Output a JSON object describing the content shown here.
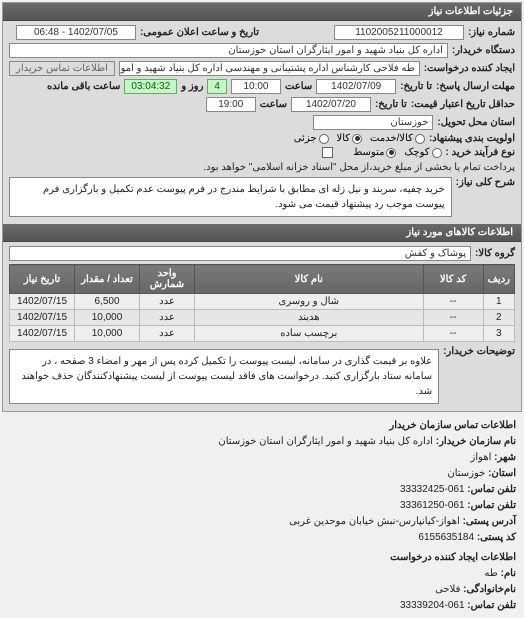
{
  "colors": {
    "header_bg": "#666666",
    "header_text": "#ffffff",
    "panel_bg": "#dcdcdc",
    "input_bg": "#ffffff",
    "border": "#888888",
    "time_bg": "#c8f5c8",
    "time_text": "#006600"
  },
  "header": {
    "title": "جزئیات اطلاعات نیاز"
  },
  "top": {
    "label_req_no": "شماره نیاز:",
    "req_no": "1102005211000012",
    "label_announce": "تاریخ و ساعت اعلان عمومی:",
    "announce_date": "1402/07/05 - 06:48",
    "label_buyer": "دستگاه خریدار:",
    "buyer": "اداره کل بنیاد شهید و امور ایثارگران استان خوزستان",
    "label_creator": "ایجاد کننده درخواست:",
    "creator": "طه فلاحی کارشناس اداره پشتیبانی و مهندسی اداره کل بنیاد شهید و امور ایثـ",
    "contact_link": "اطلاعات تماس خریدار",
    "label_deadline": "مهلت ارسال پاسخ:",
    "label_to_date": "تا تاریخ:",
    "deadline_date": "1402/07/09",
    "label_time": "ساعت",
    "deadline_time": "10:00",
    "remain_days": "4",
    "label_days_and": "روز و",
    "remain_time": "03:04:32",
    "label_remaining": "ساعت باقی مانده",
    "label_price_validity": "حداقل تاریخ اعتبار قیمت:",
    "label_to_date2": "تا تاریخ:",
    "validity_date": "1402/07/20",
    "label_time2": "ساعت",
    "validity_time": "19:00",
    "label_province": "استان محل تحویل:",
    "province": "خوزستان",
    "label_pkg_priority": "اولویت بندی پیشنهاد:",
    "pkg_opt_item": "کالا/خدمت",
    "pkg_opt_all": "کالا",
    "pkg_opt_partial": "جزئی",
    "label_need_type": "نوع فرآیند خرید :",
    "need_opt_low": "کوچک",
    "need_opt_mid": "متوسط",
    "label_payment": "پرداخت تمام یا بخشی از مبلغ خرید،از محل \"اسناد خزانه اسلامی\" خواهد بود.",
    "label_desc": "شرح کلی نیاز:",
    "desc": "خرید چفیه، سربند و نیل زله ای مطابق با شرایط مندرج در فرم پیوست عدم تکمیل و بارگزاری فرم پیوست موجب رد پیشنهاد قیمت می شود."
  },
  "goods_section": {
    "title": "اطلاعات کالاهای مورد نیاز",
    "label_group": "گروه کالا:",
    "group": "پوشاک و کفش",
    "columns": [
      "ردیف",
      "کد کالا",
      "نام کالا",
      "واحد شمارش",
      "تعداد / مقدار",
      "تاریخ نیاز"
    ],
    "rows": [
      [
        "1",
        "--",
        "شال و روسری",
        "عدد",
        "6,500",
        "1402/07/15"
      ],
      [
        "2",
        "--",
        "هدبند",
        "عدد",
        "10,000",
        "1402/07/15"
      ],
      [
        "3",
        "--",
        "برچسب ساده",
        "عدد",
        "10,000",
        "1402/07/15"
      ]
    ],
    "col_widths": [
      "30px",
      "60px",
      "auto",
      "55px",
      "65px",
      "65px"
    ]
  },
  "notes": {
    "label": "توضیحات خریدار:",
    "text": "علاوه بر قیمت گذاری در سامانه، لیست پیوست را تکمیل کرده پس از مهر و امضاء 3 صفحه ، در سامانه ستاد بارگزاری کنید. درخواست های فاقد لیست پیوست از لیست پیشنهادکنندگان حذف خواهند شد."
  },
  "buyer_contact": {
    "heading": "اطلاعات تماس سازمان خریدار",
    "label_org": "نام سازمان خریدار:",
    "org": "اداره کل بنیاد شهید و امور ایثارگران استان خوزستان",
    "label_city": "شهر:",
    "city": "اهواز",
    "label_province": "استان:",
    "province": "خوزستان",
    "label_phone": "تلفن تماس:",
    "phone": "061-33332425",
    "label_fax": "تلفن تماس:",
    "fax": "061-33361250",
    "label_address": "آدرس پستی:",
    "address": "اهواز-کیانپارس-نبش خیابان موحدین غربی",
    "label_postcode": "کد پستی:",
    "postcode": "6155635184"
  },
  "creator_contact": {
    "heading": "اطلاعات ایجاد کننده درخواست",
    "label_name": "نام:",
    "name": "طه",
    "label_family": "نام‌خانوادگی:",
    "family": "فلاحی",
    "label_phone": "تلفن تماس:",
    "phone": "061-33339204"
  }
}
